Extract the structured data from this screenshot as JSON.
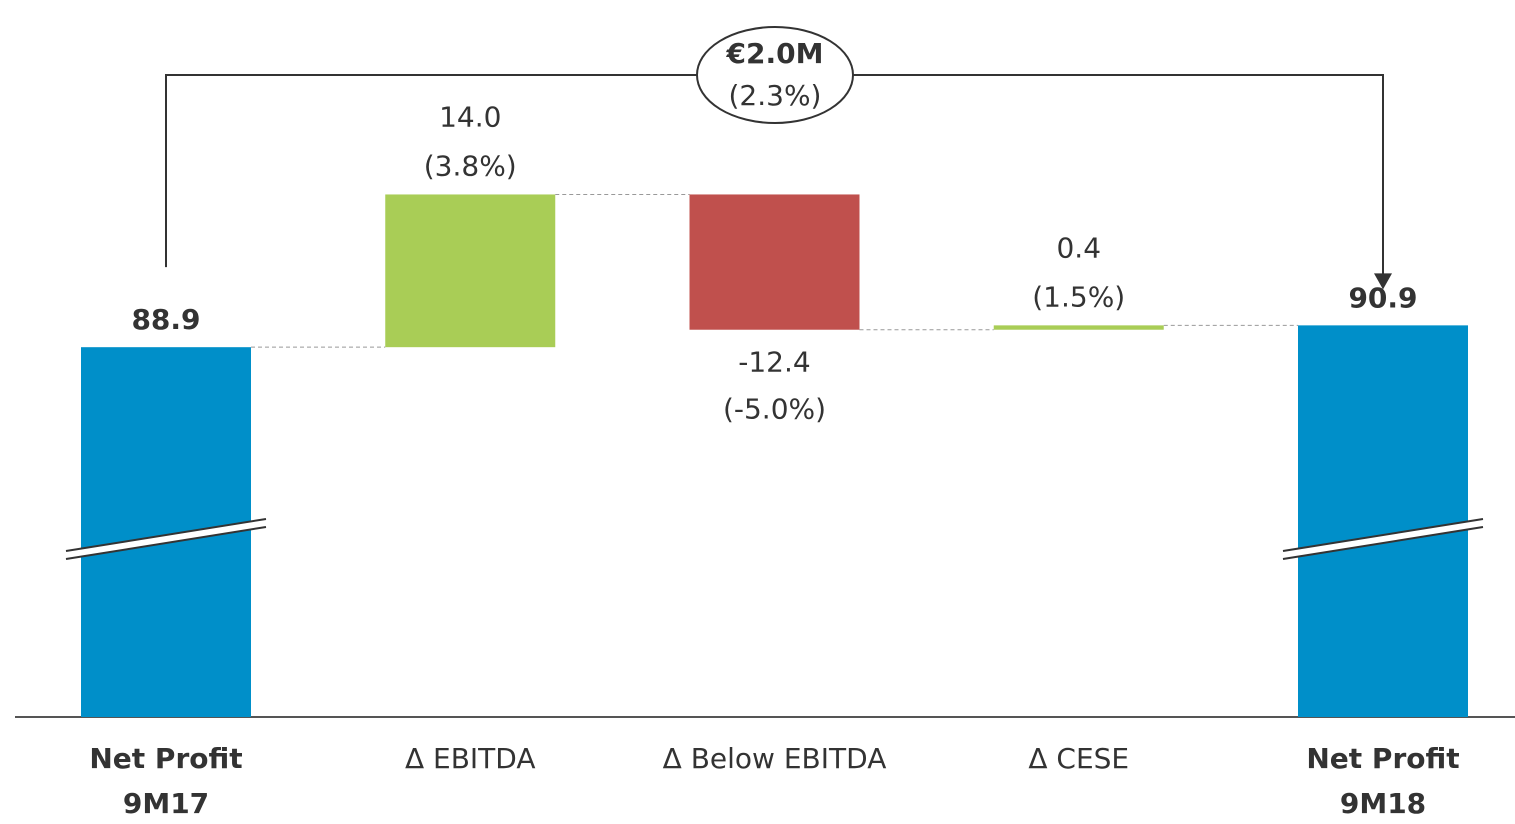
{
  "chart_data": {
    "type": "waterfall",
    "categories": [
      [
        "Net Profit",
        "9M17"
      ],
      [
        "Δ EBITDA"
      ],
      [
        "Δ Below EBITDA"
      ],
      [
        "Δ CESE"
      ],
      [
        "Net Profit",
        "9M18"
      ]
    ],
    "kinds": [
      "total",
      "delta",
      "delta",
      "delta",
      "total"
    ],
    "values": [
      88.9,
      14.0,
      -12.4,
      0.4,
      90.9
    ],
    "value_labels": [
      "88.9",
      "14.0",
      "-12.4",
      "0.4",
      "90.9"
    ],
    "percents": [
      null,
      3.8,
      -5.0,
      1.5,
      null
    ],
    "percent_labels": [
      null,
      "(3.8%)",
      "(-5.0%)",
      "(1.5%)",
      null
    ],
    "colors": {
      "total": "#008fc9",
      "increase": "#a9cd56",
      "decrease": "#c0504d"
    },
    "ylim": [
      55,
      110
    ],
    "axis_break": true,
    "annotation": {
      "value": 2.0,
      "label": "€2.0M",
      "percent": 2.3,
      "percent_label": "(2.3%)"
    }
  }
}
